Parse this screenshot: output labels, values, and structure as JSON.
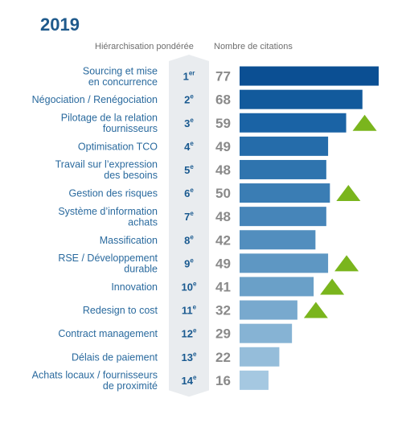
{
  "year": "2019",
  "headers": {
    "rank": "Hiérarchisation pondérée",
    "citations": "Nombre de citations"
  },
  "chart_data": {
    "type": "bar",
    "orientation": "horizontal",
    "xlim": [
      0,
      80
    ],
    "rows": [
      {
        "label_lines": [
          "Sourcing et mise",
          "en concurrence"
        ],
        "rank": "1",
        "rank_suffix": "er",
        "value": 77,
        "trend_up": false,
        "color": "#0b4f93"
      },
      {
        "label_lines": [
          "Négociation / Renégociation"
        ],
        "rank": "2",
        "rank_suffix": "e",
        "value": 68,
        "trend_up": false,
        "color": "#125a9c"
      },
      {
        "label_lines": [
          "Pilotage de la relation",
          "fournisseurs"
        ],
        "rank": "3",
        "rank_suffix": "e",
        "value": 59,
        "trend_up": true,
        "color": "#1a63a5"
      },
      {
        "label_lines": [
          "Optimisation TCO"
        ],
        "rank": "4",
        "rank_suffix": "e",
        "value": 49,
        "trend_up": false,
        "color": "#256caa"
      },
      {
        "label_lines": [
          "Travail sur l’expression",
          "des besoins"
        ],
        "rank": "5",
        "rank_suffix": "e",
        "value": 48,
        "trend_up": false,
        "color": "#2f74ae"
      },
      {
        "label_lines": [
          "Gestion des risques"
        ],
        "rank": "6",
        "rank_suffix": "e",
        "value": 50,
        "trend_up": true,
        "color": "#3a7db4"
      },
      {
        "label_lines": [
          "Système d’information",
          "achats"
        ],
        "rank": "7",
        "rank_suffix": "e",
        "value": 48,
        "trend_up": false,
        "color": "#4685b9"
      },
      {
        "label_lines": [
          "Massification"
        ],
        "rank": "8",
        "rank_suffix": "e",
        "value": 42,
        "trend_up": false,
        "color": "#528ebe"
      },
      {
        "label_lines": [
          "RSE / Développement",
          "durable"
        ],
        "rank": "9",
        "rank_suffix": "e",
        "value": 49,
        "trend_up": true,
        "color": "#5e97c3"
      },
      {
        "label_lines": [
          "Innovation"
        ],
        "rank": "10",
        "rank_suffix": "e",
        "value": 41,
        "trend_up": true,
        "color": "#6aa0c8"
      },
      {
        "label_lines": [
          "Redesign to cost"
        ],
        "rank": "11",
        "rank_suffix": "e",
        "value": 32,
        "trend_up": true,
        "color": "#78a9ce"
      },
      {
        "label_lines": [
          "Contract management"
        ],
        "rank": "12",
        "rank_suffix": "e",
        "value": 29,
        "trend_up": false,
        "color": "#86b3d4"
      },
      {
        "label_lines": [
          "Délais de paiement"
        ],
        "rank": "13",
        "rank_suffix": "e",
        "value": 22,
        "trend_up": false,
        "color": "#95bdda"
      },
      {
        "label_lines": [
          "Achats locaux / fournisseurs",
          "de proximité"
        ],
        "rank": "14",
        "rank_suffix": "e",
        "value": 16,
        "trend_up": false,
        "color": "#a5c8e1"
      }
    ]
  },
  "colors": {
    "title": "#1f5a8c",
    "label": "#2a6a9e",
    "rank": "#1a5a90",
    "value": "#8a8a8a",
    "trend": "#7ab51d",
    "pillar": "#e9ecef"
  },
  "icons": {
    "trend": "up-triangle-icon"
  }
}
